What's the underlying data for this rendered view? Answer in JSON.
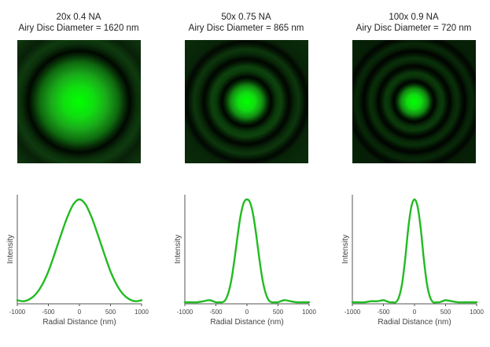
{
  "chart_data": [
    {
      "type": "line",
      "title": "20x 0.4 NA",
      "subtitle": "Airy Disc Diameter = 1620 nm",
      "objective": "20x",
      "na": 0.4,
      "airy_disc_diameter_nm": 1620,
      "xlabel": "Radial Distance (nm)",
      "ylabel": "Intensity",
      "xlim": [
        -1000,
        1000
      ],
      "xticks": [
        "-1000",
        "-500",
        "0",
        "500",
        "1000"
      ],
      "series": [
        {
          "color": "#22bb22",
          "x": [
            -1000,
            -900,
            -800,
            -700,
            -600,
            -500,
            -400,
            -300,
            -200,
            -100,
            0,
            100,
            200,
            300,
            400,
            500,
            600,
            700,
            800,
            900,
            1000
          ],
          "y": [
            0.02,
            0.01,
            0.03,
            0.08,
            0.17,
            0.3,
            0.47,
            0.65,
            0.82,
            0.95,
            1.0,
            0.95,
            0.82,
            0.65,
            0.47,
            0.3,
            0.17,
            0.08,
            0.03,
            0.01,
            0.02
          ]
        }
      ]
    },
    {
      "type": "line",
      "title": "50x 0.75 NA",
      "subtitle": "Airy Disc Diameter = 865 nm",
      "objective": "50x",
      "na": 0.75,
      "airy_disc_diameter_nm": 865,
      "xlabel": "Radial Distance (nm)",
      "ylabel": "Intensity",
      "xlim": [
        -1000,
        1000
      ],
      "xticks": [
        "-1000",
        "-500",
        "0",
        "500",
        "1000"
      ],
      "series": [
        {
          "color": "#22bb22",
          "x": [
            -1000,
            -900,
            -800,
            -700,
            -600,
            -500,
            -450,
            -400,
            -350,
            -300,
            -250,
            -200,
            -150,
            -100,
            -50,
            0,
            50,
            100,
            150,
            200,
            250,
            300,
            350,
            400,
            450,
            500,
            600,
            700,
            800,
            900,
            1000
          ],
          "y": [
            0.0,
            0.0,
            0.0,
            0.01,
            0.02,
            0.0,
            0.0,
            0.0,
            0.02,
            0.09,
            0.22,
            0.42,
            0.65,
            0.85,
            0.97,
            1.0,
            0.97,
            0.85,
            0.65,
            0.42,
            0.22,
            0.09,
            0.02,
            0.0,
            0.0,
            0.0,
            0.02,
            0.01,
            0.0,
            0.0,
            0.0
          ]
        }
      ]
    },
    {
      "type": "line",
      "title": "100x 0.9 NA",
      "subtitle": "Airy Disc Diameter = 720 nm",
      "objective": "100x",
      "na": 0.9,
      "airy_disc_diameter_nm": 720,
      "xlabel": "Radial Distance (nm)",
      "ylabel": "Intensity",
      "xlim": [
        -1000,
        1000
      ],
      "xticks": [
        "-1000",
        "-500",
        "0",
        "500",
        "1000"
      ],
      "series": [
        {
          "color": "#22bb22",
          "x": [
            -1000,
            -900,
            -800,
            -700,
            -600,
            -500,
            -450,
            -400,
            -350,
            -300,
            -250,
            -200,
            -150,
            -100,
            -50,
            0,
            50,
            100,
            150,
            200,
            250,
            300,
            350,
            400,
            450,
            500,
            600,
            700,
            800,
            900,
            1000
          ],
          "y": [
            0.0,
            0.0,
            0.0,
            0.01,
            0.01,
            0.02,
            0.01,
            0.0,
            0.0,
            0.0,
            0.05,
            0.18,
            0.42,
            0.72,
            0.93,
            1.0,
            0.93,
            0.72,
            0.42,
            0.18,
            0.05,
            0.0,
            0.0,
            0.0,
            0.01,
            0.02,
            0.01,
            0.0,
            0.0,
            0.0,
            0.0
          ]
        }
      ]
    }
  ],
  "colors": {
    "curve": "#22bb22",
    "disc_center": "#00ff00",
    "disc_background": "#001400",
    "axis": "#555555"
  }
}
